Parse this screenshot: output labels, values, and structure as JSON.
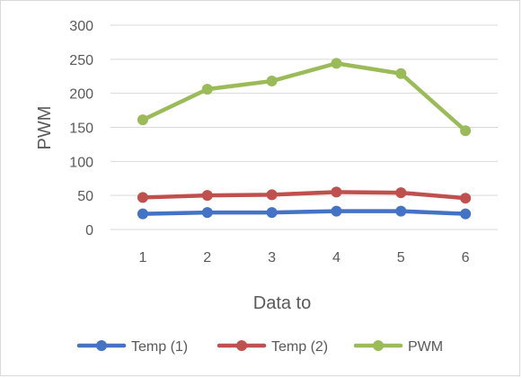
{
  "chart_data": {
    "type": "line",
    "title": "",
    "xlabel": "Data to",
    "ylabel": "PWM",
    "x": [
      1,
      2,
      3,
      4,
      5,
      6
    ],
    "ylim": [
      0,
      300
    ],
    "yticks": [
      0,
      50,
      100,
      150,
      200,
      250,
      300
    ],
    "grid": true,
    "legend_position": "bottom",
    "series": [
      {
        "name": "Temp (1)",
        "color": "#4472c4",
        "values": [
          23,
          25,
          25,
          27,
          27,
          23
        ]
      },
      {
        "name": "Temp (2)",
        "color": "#c0504d",
        "values": [
          47,
          50,
          51,
          55,
          54,
          46
        ]
      },
      {
        "name": "PWM",
        "color": "#9bbb59",
        "values": [
          161,
          206,
          218,
          244,
          229,
          145
        ]
      }
    ]
  }
}
